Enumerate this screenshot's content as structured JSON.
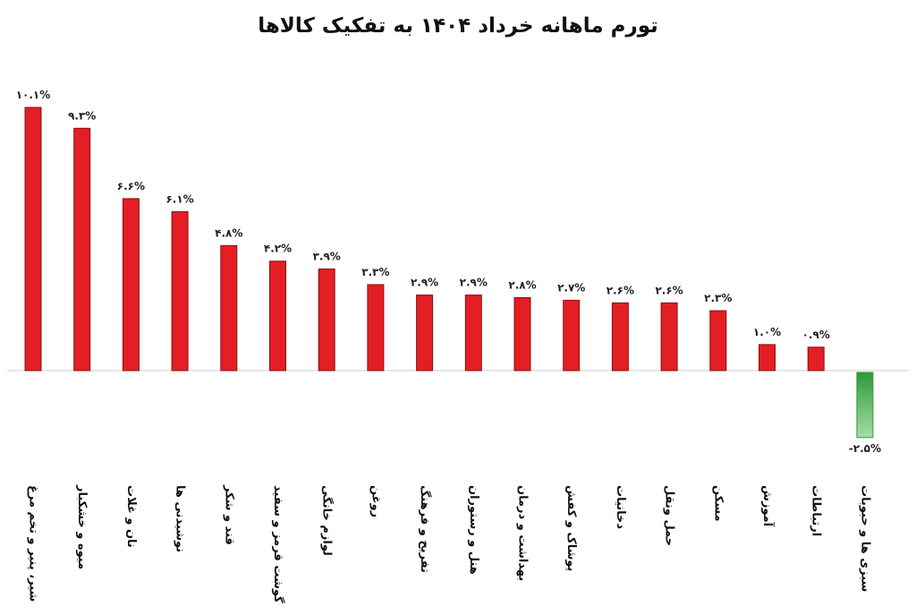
{
  "chart_data": {
    "type": "bar",
    "title": "تورم ماهانه خرداد ۱۴۰۴ به تفکیک کالاها",
    "xlabel": "",
    "ylabel": "",
    "ylim": [
      -3,
      10.1
    ],
    "grid": false,
    "legend": "none",
    "categories": [
      "شیر، پنیر و تخم مرغ",
      "میوه و خشکبار",
      "نان و غلات",
      "نوشیدنی ها",
      "قند و شکر",
      "گوشت قرمز و سفید",
      "لوازم خانگی",
      "روغن",
      "تفریح و فرهنگ",
      "هتل و رستوران",
      "بهداشت و درمان",
      "پوشاک و کفش",
      "دخانیات",
      "حمل ونقل",
      "مسکن",
      "آموزش",
      "ارتباطات",
      "سبزی ها و حبوبات"
    ],
    "values": [
      10.1,
      9.3,
      6.6,
      6.1,
      4.8,
      4.2,
      3.9,
      3.3,
      2.9,
      2.9,
      2.8,
      2.7,
      2.6,
      2.6,
      2.3,
      1.0,
      0.9,
      -2.5
    ],
    "value_labels": [
      "۱۰.۱%",
      "۹.۳%",
      "۶.۶%",
      "۶.۱%",
      "۴.۸%",
      "۴.۲%",
      "۳.۹%",
      "۳.۳%",
      "۲.۹%",
      "۲.۹%",
      "۲.۸%",
      "۲.۷%",
      "۲.۶%",
      "۲.۶%",
      "۲.۳%",
      "۱.۰%",
      "۰.۹%",
      "-۲.۵%"
    ],
    "colors": {
      "positive_fill": "#e31e24",
      "positive_stroke": "#8a1010",
      "negative_top": "#2f9a3a",
      "negative_bottom": "#a6dca6",
      "axis": "#cfcfcf"
    }
  }
}
